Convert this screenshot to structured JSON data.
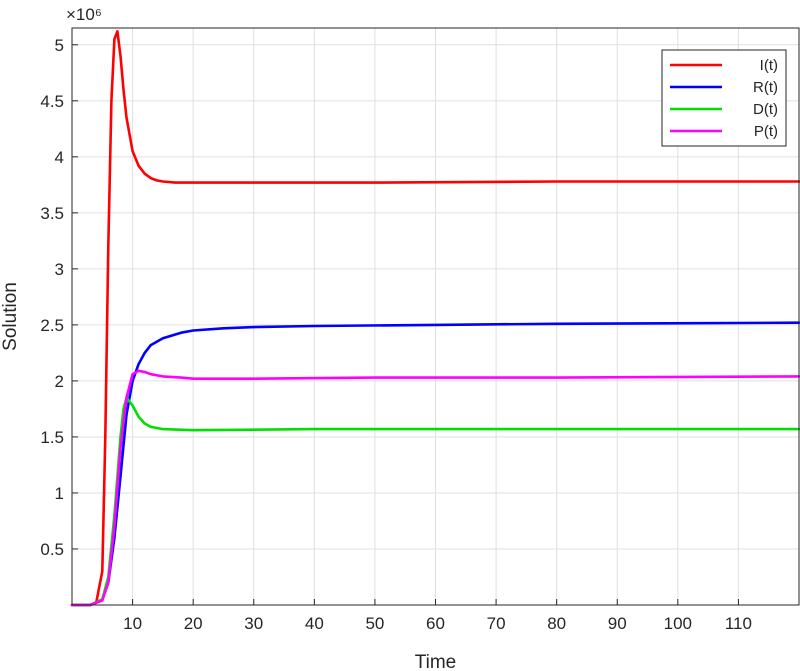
{
  "chart_data": {
    "type": "line",
    "title": "",
    "xlabel": "Time",
    "ylabel": "Solution",
    "exponent_label": "×10⁶",
    "xlim": [
      0,
      120
    ],
    "ylim": [
      0,
      5.15
    ],
    "x_ticks": [
      10,
      20,
      30,
      40,
      50,
      60,
      70,
      80,
      90,
      100,
      110
    ],
    "y_ticks": [
      0.5,
      1,
      1.5,
      2,
      2.5,
      3,
      3.5,
      4,
      4.5,
      5
    ],
    "grid": true,
    "legend_position": "top-right",
    "series": [
      {
        "name": "I(t)",
        "color": "#ff0000",
        "x": [
          0,
          3,
          4,
          5,
          5.5,
          6,
          6.5,
          7,
          7.5,
          8,
          8.5,
          9,
          10,
          11,
          12,
          13,
          14,
          15,
          17,
          20,
          30,
          50,
          80,
          120
        ],
        "y": [
          0,
          0,
          0.02,
          0.3,
          1.5,
          3.2,
          4.5,
          5.05,
          5.12,
          4.9,
          4.6,
          4.35,
          4.05,
          3.92,
          3.85,
          3.81,
          3.79,
          3.78,
          3.77,
          3.77,
          3.77,
          3.77,
          3.78,
          3.78
        ]
      },
      {
        "name": "R(t)",
        "color": "#0000ff",
        "x": [
          0,
          3,
          5,
          6,
          7,
          8,
          9,
          10,
          11,
          12,
          13,
          15,
          18,
          20,
          25,
          30,
          40,
          60,
          80,
          120
        ],
        "y": [
          0,
          0,
          0.05,
          0.2,
          0.6,
          1.15,
          1.7,
          2.0,
          2.15,
          2.25,
          2.32,
          2.38,
          2.43,
          2.45,
          2.47,
          2.48,
          2.49,
          2.5,
          2.51,
          2.52
        ]
      },
      {
        "name": "D(t)",
        "color": "#00e000",
        "x": [
          0,
          3,
          5,
          6,
          7,
          8,
          8.5,
          9,
          10,
          11,
          12,
          13,
          15,
          20,
          40,
          80,
          120
        ],
        "y": [
          0,
          0,
          0.05,
          0.25,
          0.8,
          1.5,
          1.75,
          1.85,
          1.78,
          1.68,
          1.62,
          1.59,
          1.57,
          1.56,
          1.57,
          1.57,
          1.57
        ]
      },
      {
        "name": "P(t)",
        "color": "#ff00ff",
        "x": [
          0,
          3,
          5,
          6,
          7,
          8,
          9,
          10,
          11,
          12,
          13,
          15,
          18,
          20,
          30,
          50,
          80,
          120
        ],
        "y": [
          0,
          0,
          0.04,
          0.2,
          0.7,
          1.4,
          1.85,
          2.06,
          2.09,
          2.08,
          2.06,
          2.04,
          2.03,
          2.02,
          2.02,
          2.03,
          2.03,
          2.04
        ]
      }
    ]
  }
}
